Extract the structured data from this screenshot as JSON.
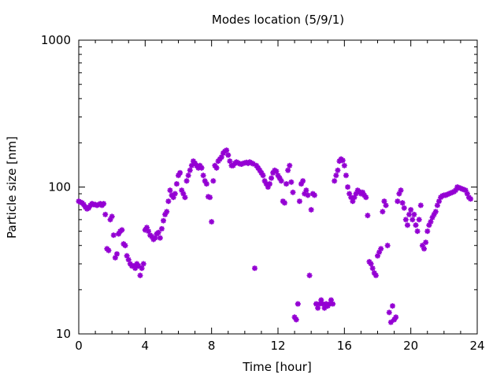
{
  "chart_data": {
    "type": "scatter",
    "title": "Modes location (5/9/1)",
    "xlabel": "Time [hour]",
    "ylabel": "Particle size [nm]",
    "xlim": [
      0,
      24
    ],
    "ylim": [
      10,
      1000
    ],
    "yscale": "log",
    "grid": false,
    "legend": "none",
    "marker_color": "#9400d3",
    "marker": "star",
    "x_ticks": [
      "0",
      "4",
      "8",
      "12",
      "16",
      "20",
      "24"
    ],
    "y_ticks": [
      "10",
      "100",
      "1000"
    ],
    "series": [
      {
        "points": [
          [
            0.0,
            80
          ],
          [
            0.1,
            79
          ],
          [
            0.2,
            78
          ],
          [
            0.3,
            76
          ],
          [
            0.4,
            73
          ],
          [
            0.5,
            71
          ],
          [
            0.6,
            72
          ],
          [
            0.7,
            75
          ],
          [
            0.8,
            77
          ],
          [
            0.9,
            76
          ],
          [
            1.0,
            76
          ],
          [
            1.1,
            75
          ],
          [
            1.2,
            76
          ],
          [
            1.3,
            77
          ],
          [
            1.4,
            75
          ],
          [
            1.5,
            77
          ],
          [
            1.6,
            65
          ],
          [
            1.7,
            38
          ],
          [
            1.8,
            37
          ],
          [
            1.9,
            60
          ],
          [
            2.0,
            63
          ],
          [
            2.1,
            47
          ],
          [
            2.2,
            33
          ],
          [
            2.3,
            35
          ],
          [
            2.4,
            48
          ],
          [
            2.5,
            50
          ],
          [
            2.6,
            51
          ],
          [
            2.7,
            41
          ],
          [
            2.8,
            40
          ],
          [
            2.9,
            34
          ],
          [
            3.0,
            32
          ],
          [
            3.1,
            30
          ],
          [
            3.2,
            29
          ],
          [
            3.3,
            29
          ],
          [
            3.4,
            28
          ],
          [
            3.5,
            30
          ],
          [
            3.6,
            29
          ],
          [
            3.7,
            25
          ],
          [
            3.8,
            28
          ],
          [
            3.9,
            30
          ],
          [
            4.0,
            51
          ],
          [
            4.1,
            53
          ],
          [
            4.2,
            50
          ],
          [
            4.3,
            47
          ],
          [
            4.4,
            46
          ],
          [
            4.5,
            44
          ],
          [
            4.6,
            45
          ],
          [
            4.7,
            48
          ],
          [
            4.8,
            49
          ],
          [
            4.9,
            45
          ],
          [
            5.0,
            52
          ],
          [
            5.1,
            59
          ],
          [
            5.2,
            65
          ],
          [
            5.3,
            68
          ],
          [
            5.4,
            80
          ],
          [
            5.5,
            95
          ],
          [
            5.6,
            88
          ],
          [
            5.7,
            85
          ],
          [
            5.8,
            90
          ],
          [
            5.9,
            105
          ],
          [
            6.0,
            120
          ],
          [
            6.1,
            125
          ],
          [
            6.2,
            95
          ],
          [
            6.3,
            90
          ],
          [
            6.4,
            85
          ],
          [
            6.5,
            110
          ],
          [
            6.6,
            120
          ],
          [
            6.7,
            130
          ],
          [
            6.8,
            140
          ],
          [
            6.9,
            150
          ],
          [
            7.0,
            145
          ],
          [
            7.1,
            140
          ],
          [
            7.2,
            135
          ],
          [
            7.3,
            140
          ],
          [
            7.4,
            135
          ],
          [
            7.5,
            120
          ],
          [
            7.6,
            110
          ],
          [
            7.7,
            105
          ],
          [
            7.8,
            86
          ],
          [
            7.9,
            85
          ],
          [
            8.0,
            58
          ],
          [
            8.1,
            110
          ],
          [
            8.2,
            140
          ],
          [
            8.3,
            135
          ],
          [
            8.4,
            150
          ],
          [
            8.5,
            155
          ],
          [
            8.6,
            160
          ],
          [
            8.7,
            170
          ],
          [
            8.8,
            175
          ],
          [
            8.9,
            178
          ],
          [
            9.0,
            165
          ],
          [
            9.1,
            150
          ],
          [
            9.2,
            140
          ],
          [
            9.3,
            140
          ],
          [
            9.4,
            145
          ],
          [
            9.5,
            148
          ],
          [
            9.6,
            146
          ],
          [
            9.7,
            144
          ],
          [
            9.8,
            143
          ],
          [
            9.9,
            145
          ],
          [
            10.0,
            146
          ],
          [
            10.1,
            147
          ],
          [
            10.2,
            145
          ],
          [
            10.3,
            148
          ],
          [
            10.4,
            146
          ],
          [
            10.5,
            144
          ],
          [
            10.6,
            28
          ],
          [
            10.7,
            140
          ],
          [
            10.8,
            135
          ],
          [
            10.9,
            130
          ],
          [
            11.0,
            125
          ],
          [
            11.1,
            120
          ],
          [
            11.2,
            110
          ],
          [
            11.3,
            105
          ],
          [
            11.4,
            100
          ],
          [
            11.5,
            105
          ],
          [
            11.6,
            115
          ],
          [
            11.7,
            125
          ],
          [
            11.8,
            130
          ],
          [
            11.9,
            128
          ],
          [
            12.0,
            120
          ],
          [
            12.1,
            115
          ],
          [
            12.2,
            110
          ],
          [
            12.3,
            80
          ],
          [
            12.4,
            78
          ],
          [
            12.5,
            105
          ],
          [
            12.6,
            130
          ],
          [
            12.7,
            140
          ],
          [
            12.8,
            108
          ],
          [
            12.9,
            92
          ],
          [
            13.0,
            13
          ],
          [
            13.1,
            12.5
          ],
          [
            13.2,
            16
          ],
          [
            13.3,
            80
          ],
          [
            13.4,
            105
          ],
          [
            13.5,
            110
          ],
          [
            13.6,
            90
          ],
          [
            13.7,
            95
          ],
          [
            13.8,
            88
          ],
          [
            13.9,
            25
          ],
          [
            14.0,
            70
          ],
          [
            14.1,
            90
          ],
          [
            14.2,
            88
          ],
          [
            14.3,
            16
          ],
          [
            14.4,
            15
          ],
          [
            14.5,
            16
          ],
          [
            14.6,
            17
          ],
          [
            14.7,
            16
          ],
          [
            14.8,
            15
          ],
          [
            14.9,
            16
          ],
          [
            15.0,
            15.5
          ],
          [
            15.1,
            16
          ],
          [
            15.2,
            17
          ],
          [
            15.3,
            16
          ],
          [
            15.4,
            110
          ],
          [
            15.5,
            120
          ],
          [
            15.6,
            130
          ],
          [
            15.7,
            150
          ],
          [
            15.8,
            155
          ],
          [
            15.9,
            152
          ],
          [
            16.0,
            140
          ],
          [
            16.1,
            120
          ],
          [
            16.2,
            100
          ],
          [
            16.3,
            90
          ],
          [
            16.4,
            85
          ],
          [
            16.5,
            80
          ],
          [
            16.6,
            85
          ],
          [
            16.7,
            90
          ],
          [
            16.8,
            95
          ],
          [
            16.9,
            93
          ],
          [
            17.0,
            90
          ],
          [
            17.1,
            92
          ],
          [
            17.2,
            88
          ],
          [
            17.3,
            85
          ],
          [
            17.4,
            64
          ],
          [
            17.5,
            31
          ],
          [
            17.6,
            30
          ],
          [
            17.7,
            28
          ],
          [
            17.8,
            26
          ],
          [
            17.9,
            25
          ],
          [
            18.0,
            34
          ],
          [
            18.1,
            36
          ],
          [
            18.2,
            38
          ],
          [
            18.3,
            68
          ],
          [
            18.4,
            80
          ],
          [
            18.5,
            75
          ],
          [
            18.6,
            40
          ],
          [
            18.7,
            14
          ],
          [
            18.8,
            12
          ],
          [
            18.9,
            15.5
          ],
          [
            19.0,
            12.5
          ],
          [
            19.1,
            13
          ],
          [
            19.2,
            80
          ],
          [
            19.3,
            90
          ],
          [
            19.4,
            95
          ],
          [
            19.5,
            78
          ],
          [
            19.6,
            72
          ],
          [
            19.7,
            60
          ],
          [
            19.8,
            55
          ],
          [
            19.9,
            65
          ],
          [
            20.0,
            70
          ],
          [
            20.1,
            60
          ],
          [
            20.2,
            65
          ],
          [
            20.3,
            55
          ],
          [
            20.4,
            50
          ],
          [
            20.5,
            60
          ],
          [
            20.6,
            75
          ],
          [
            20.7,
            40
          ],
          [
            20.8,
            38
          ],
          [
            20.9,
            42
          ],
          [
            21.0,
            50
          ],
          [
            21.1,
            55
          ],
          [
            21.2,
            58
          ],
          [
            21.3,
            62
          ],
          [
            21.4,
            65
          ],
          [
            21.5,
            68
          ],
          [
            21.6,
            75
          ],
          [
            21.7,
            80
          ],
          [
            21.8,
            85
          ],
          [
            21.9,
            87
          ],
          [
            22.0,
            88
          ],
          [
            22.1,
            88
          ],
          [
            22.2,
            89
          ],
          [
            22.3,
            90
          ],
          [
            22.4,
            91
          ],
          [
            22.5,
            92
          ],
          [
            22.6,
            93
          ],
          [
            22.7,
            95
          ],
          [
            22.8,
            100
          ],
          [
            22.9,
            99
          ],
          [
            23.0,
            98
          ],
          [
            23.1,
            97
          ],
          [
            23.2,
            96
          ],
          [
            23.3,
            95
          ],
          [
            23.4,
            90
          ],
          [
            23.5,
            85
          ],
          [
            23.6,
            83
          ]
        ]
      }
    ]
  }
}
